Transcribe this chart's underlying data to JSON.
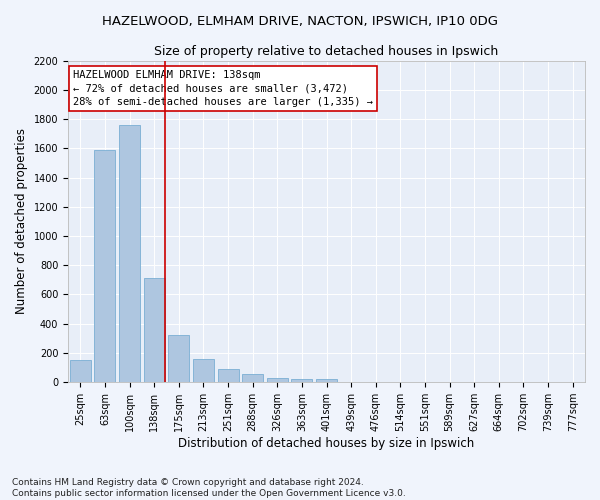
{
  "title": "HAZELWOOD, ELMHAM DRIVE, NACTON, IPSWICH, IP10 0DG",
  "subtitle": "Size of property relative to detached houses in Ipswich",
  "xlabel": "Distribution of detached houses by size in Ipswich",
  "ylabel": "Number of detached properties",
  "categories": [
    "25sqm",
    "63sqm",
    "100sqm",
    "138sqm",
    "175sqm",
    "213sqm",
    "251sqm",
    "288sqm",
    "326sqm",
    "363sqm",
    "401sqm",
    "439sqm",
    "476sqm",
    "514sqm",
    "551sqm",
    "589sqm",
    "627sqm",
    "664sqm",
    "702sqm",
    "739sqm",
    "777sqm"
  ],
  "values": [
    155,
    1590,
    1760,
    710,
    320,
    160,
    90,
    55,
    30,
    25,
    20,
    0,
    0,
    0,
    0,
    0,
    0,
    0,
    0,
    0,
    0
  ],
  "bar_color": "#aec6e0",
  "bar_edgecolor": "#7aafd4",
  "vline_index": 3,
  "vline_color": "#cc0000",
  "annotation_text": "HAZELWOOD ELMHAM DRIVE: 138sqm\n← 72% of detached houses are smaller (3,472)\n28% of semi-detached houses are larger (1,335) →",
  "annotation_box_edgecolor": "#cc0000",
  "annotation_box_facecolor": "#ffffff",
  "ylim": [
    0,
    2200
  ],
  "yticks": [
    0,
    200,
    400,
    600,
    800,
    1000,
    1200,
    1400,
    1600,
    1800,
    2000,
    2200
  ],
  "footnote": "Contains HM Land Registry data © Crown copyright and database right 2024.\nContains public sector information licensed under the Open Government Licence v3.0.",
  "background_color": "#f0f4fc",
  "plot_background_color": "#e8eef8",
  "title_fontsize": 9.5,
  "subtitle_fontsize": 9,
  "axis_label_fontsize": 8.5,
  "tick_fontsize": 7,
  "annotation_fontsize": 7.5,
  "footnote_fontsize": 6.5
}
